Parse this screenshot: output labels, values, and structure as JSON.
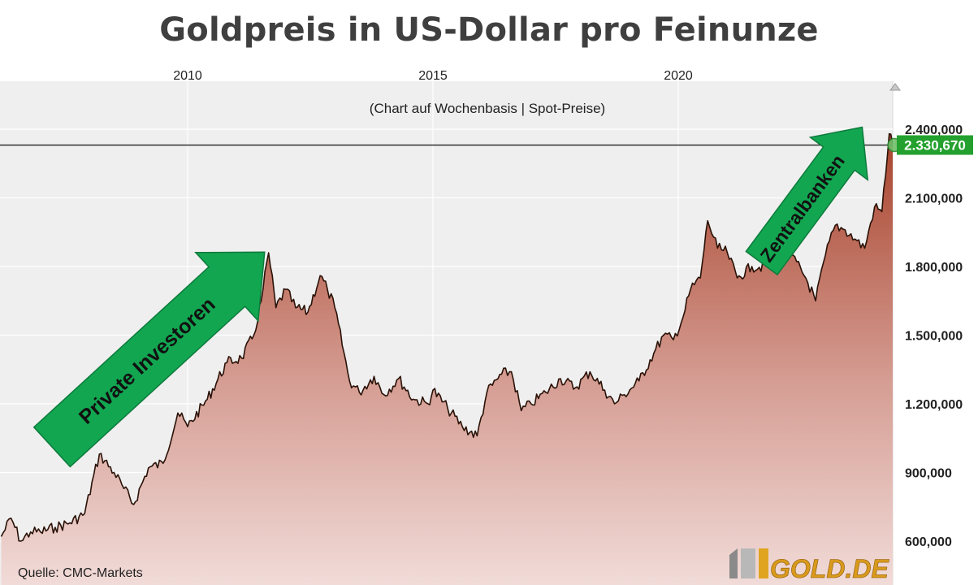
{
  "title": "Goldpreis in US-Dollar pro Feinunze",
  "subtitle": "(Chart auf Wochenbasis | Spot-Preise)",
  "source": "Quelle: CMC-Markets",
  "logo_text": "GOLD.DE",
  "colors": {
    "line": "#2a1208",
    "area_top": "#a8432c",
    "area_bottom": "#f1dbd8",
    "plot_bg": "#efefef",
    "grid": "#ffffff",
    "arrow": "#12a651",
    "arrow_stroke": "#0d7a3b",
    "badge": "#23a02e",
    "current_line": "#222222"
  },
  "chart_data": {
    "type": "area",
    "x_unit": "year",
    "x_ticks": [
      "2010",
      "2015",
      "2020"
    ],
    "y_ticks": [
      "600,000",
      "900,000",
      "1.200,000",
      "1.500,000",
      "1.800,000",
      "2.100,000",
      "2.400,000"
    ],
    "ylim": [
      530,
      2530
    ],
    "xlim": [
      2006.2,
      2024.4
    ],
    "current_value_label": "2.330,670",
    "current_value": 2330.67,
    "annotations": [
      "Private Investoren",
      "Zentralbanken"
    ],
    "grid": true,
    "x": [
      2006.2,
      2006.4,
      2006.6,
      2006.8,
      2007.0,
      2007.3,
      2007.6,
      2007.9,
      2008.2,
      2008.5,
      2008.7,
      2008.9,
      2009.2,
      2009.5,
      2009.8,
      2010.0,
      2010.4,
      2010.8,
      2011.1,
      2011.35,
      2011.5,
      2011.65,
      2011.8,
      2012.0,
      2012.2,
      2012.45,
      2012.7,
      2012.85,
      2013.0,
      2013.3,
      2013.5,
      2013.8,
      2014.0,
      2014.3,
      2014.6,
      2014.9,
      2015.0,
      2015.3,
      2015.6,
      2015.9,
      2016.1,
      2016.4,
      2016.6,
      2016.8,
      2017.0,
      2017.3,
      2017.6,
      2017.9,
      2018.2,
      2018.5,
      2018.7,
      2018.9,
      2019.2,
      2019.5,
      2019.7,
      2019.9,
      2020.1,
      2020.25,
      2020.45,
      2020.6,
      2020.8,
      2021.0,
      2021.2,
      2021.5,
      2021.8,
      2022.1,
      2022.3,
      2022.6,
      2022.8,
      2023.0,
      2023.2,
      2023.4,
      2023.6,
      2023.8,
      2024.0,
      2024.15,
      2024.3,
      2024.4
    ],
    "values": [
      620,
      700,
      600,
      640,
      640,
      660,
      680,
      720,
      980,
      900,
      830,
      760,
      920,
      940,
      1160,
      1100,
      1220,
      1380,
      1400,
      1500,
      1650,
      1860,
      1620,
      1700,
      1620,
      1600,
      1760,
      1700,
      1620,
      1300,
      1250,
      1320,
      1240,
      1310,
      1220,
      1200,
      1260,
      1180,
      1100,
      1060,
      1250,
      1330,
      1340,
      1170,
      1200,
      1250,
      1310,
      1270,
      1340,
      1260,
      1200,
      1240,
      1300,
      1420,
      1500,
      1480,
      1580,
      1700,
      1750,
      2000,
      1880,
      1860,
      1750,
      1800,
      1800,
      1900,
      1850,
      1750,
      1650,
      1850,
      1980,
      1960,
      1920,
      1880,
      2060,
      2040,
      2380,
      2330.67
    ]
  }
}
